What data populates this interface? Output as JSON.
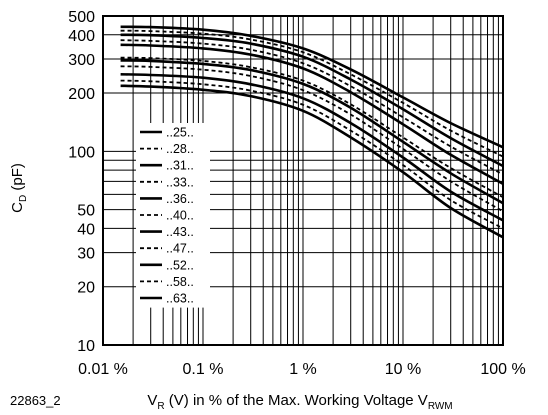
{
  "figure_id": "22863_2",
  "chart_data": {
    "type": "line",
    "xlabel_parts": {
      "main": "V",
      "sub": "R",
      "rest": " (V) in % of the Max. Working Voltage V",
      "sub2": "RWM"
    },
    "ylabel_parts": {
      "main": "C",
      "sub": "D",
      "rest": " (pF)"
    },
    "x_scale": "log",
    "y_scale": "log",
    "xlim": [
      0.01,
      100
    ],
    "ylim": [
      10,
      500
    ],
    "grid": true,
    "x_ticks": [
      {
        "value": 0.01,
        "label": "0.01 %"
      },
      {
        "value": 0.1,
        "label": "0.1 %"
      },
      {
        "value": 1,
        "label": "1 %"
      },
      {
        "value": 10,
        "label": "10 %"
      },
      {
        "value": 100,
        "label": "100 %"
      }
    ],
    "y_ticks": [
      {
        "value": 10,
        "label": "10"
      },
      {
        "value": 20,
        "label": "20"
      },
      {
        "value": 30,
        "label": "30"
      },
      {
        "value": 40,
        "label": "40"
      },
      {
        "value": 50,
        "label": "50"
      },
      {
        "value": 100,
        "label": "100"
      },
      {
        "value": 200,
        "label": "200"
      },
      {
        "value": 300,
        "label": "300"
      },
      {
        "value": 400,
        "label": "400"
      },
      {
        "value": 500,
        "label": "500"
      }
    ],
    "legend_placement": "lower-left",
    "x": [
      0.015,
      0.03,
      0.1,
      0.3,
      1,
      3,
      10,
      30,
      100
    ],
    "series": [
      {
        "name": "..25..",
        "style": "solid",
        "values": [
          440,
          438,
          425,
          395,
          340,
          265,
          190,
          140,
          105
        ]
      },
      {
        "name": "..28..",
        "style": "dashed",
        "values": [
          420,
          418,
          405,
          378,
          325,
          250,
          178,
          128,
          94
        ]
      },
      {
        "name": "..31..",
        "style": "solid",
        "values": [
          400,
          398,
          385,
          360,
          308,
          235,
          165,
          117,
          84
        ]
      },
      {
        "name": "..33..",
        "style": "dashed",
        "values": [
          375,
          372,
          360,
          335,
          285,
          217,
          150,
          106,
          76
        ]
      },
      {
        "name": "..36..",
        "style": "solid",
        "values": [
          355,
          352,
          340,
          316,
          268,
          202,
          138,
          96,
          68
        ]
      },
      {
        "name": "..40..",
        "style": "dashed",
        "values": [
          305,
          303,
          293,
          272,
          232,
          175,
          118,
          82,
          58
        ]
      },
      {
        "name": "..43..",
        "style": "solid",
        "values": [
          295,
          293,
          283,
          263,
          223,
          168,
          112,
          77,
          54
        ]
      },
      {
        "name": "..47..",
        "style": "dashed",
        "values": [
          275,
          273,
          264,
          245,
          207,
          155,
          103,
          70,
          49
        ]
      },
      {
        "name": "..52..",
        "style": "solid",
        "values": [
          250,
          248,
          240,
          222,
          188,
          140,
          93,
          62,
          44
        ]
      },
      {
        "name": "..58..",
        "style": "dashed",
        "values": [
          232,
          230,
          222,
          206,
          174,
          128,
          85,
          56,
          40
        ]
      },
      {
        "name": "..63..",
        "style": "solid",
        "values": [
          218,
          216,
          208,
          193,
          162,
          118,
          78,
          51,
          36
        ]
      }
    ]
  }
}
